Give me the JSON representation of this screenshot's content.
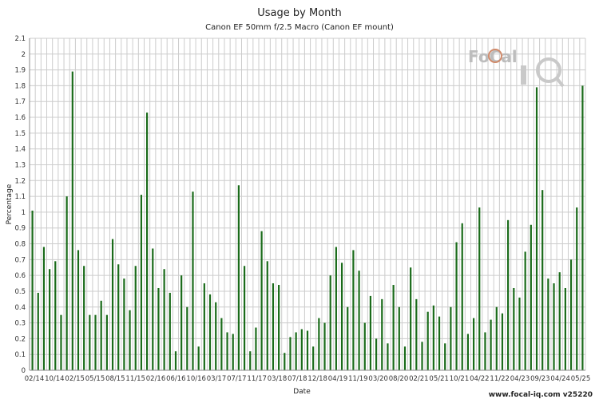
{
  "chart_data": {
    "type": "bar",
    "title": "Usage by Month",
    "subtitle": "Canon EF 50mm f/2.5 Macro (Canon EF mount)",
    "xlabel": "Date",
    "ylabel": "Percentage",
    "ylim": [
      0,
      2.1
    ],
    "y_ticks": [
      "0",
      "0.1",
      "0.2",
      "0.3",
      "0.4",
      "0.5",
      "0.6",
      "0.7",
      "0.8",
      "0.9",
      "1",
      "1.1",
      "1.2",
      "1.3",
      "1.4",
      "1.5",
      "1.6",
      "1.7",
      "1.8",
      "1.9",
      "2",
      "2.1"
    ],
    "x_tick_labels": [
      "02/14",
      "10/14",
      "02/15",
      "05/15",
      "08/15",
      "11/15",
      "02/16",
      "06/16",
      "10/16",
      "03/17",
      "07/17",
      "11/17",
      "03/18",
      "07/18",
      "12/18",
      "04/19",
      "11/19",
      "03/20",
      "08/20",
      "02/21",
      "05/21",
      "10/21",
      "04/22",
      "11/22",
      "04/23",
      "09/23",
      "04/24",
      "05/25"
    ],
    "bar_color": "#1a6b1a",
    "grid": true,
    "values": [
      1.01,
      0.49,
      0.78,
      0.64,
      0.69,
      0.35,
      1.1,
      1.89,
      0.76,
      0.66,
      0.35,
      0.35,
      0.44,
      0.35,
      0.83,
      0.67,
      0.58,
      0.38,
      0.66,
      1.11,
      1.63,
      0.77,
      0.52,
      0.64,
      0.49,
      0.12,
      0.6,
      0.4,
      1.13,
      0.15,
      0.55,
      0.48,
      0.43,
      0.33,
      0.24,
      0.23,
      1.17,
      0.66,
      0.12,
      0.27,
      0.88,
      0.69,
      0.55,
      0.54,
      0.11,
      0.21,
      0.24,
      0.26,
      0.25,
      0.15,
      0.33,
      0.3,
      0.6,
      0.78,
      0.68,
      0.4,
      0.76,
      0.63,
      0.3,
      0.47,
      0.2,
      0.45,
      0.17,
      0.54,
      0.4,
      0.15,
      0.65,
      0.45,
      0.18,
      0.37,
      0.41,
      0.34,
      0.17,
      0.4,
      0.81,
      0.93,
      0.23,
      0.33,
      1.03,
      0.24,
      0.32,
      0.4,
      0.36,
      0.95,
      0.52,
      0.46,
      0.75,
      0.92,
      1.79,
      1.14,
      0.58,
      0.55,
      0.62,
      0.52,
      0.7,
      1.03,
      1.8
    ]
  },
  "logo": {
    "text": "FoCal",
    "mark": "iQ"
  },
  "footer": {
    "text": "www.focal-iq.com  v25220"
  }
}
